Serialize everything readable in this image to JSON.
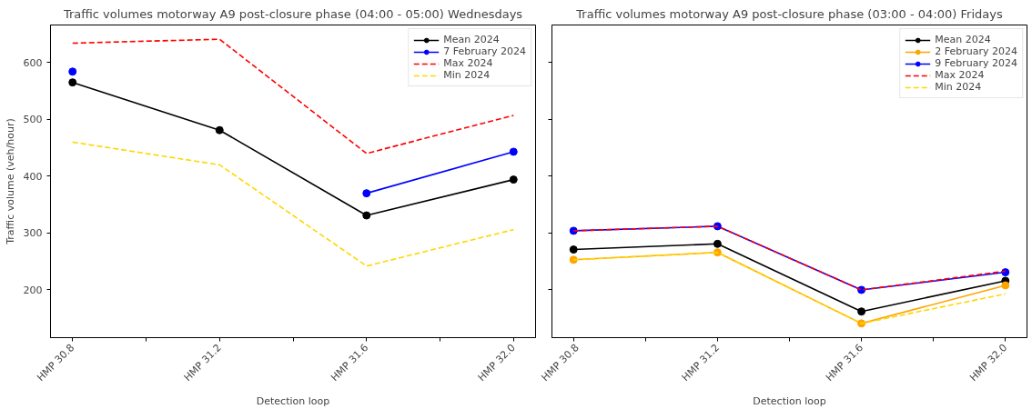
{
  "chart_data": [
    {
      "type": "line",
      "title": "Traffic volumes motorway A9 post-closure phase (04:00 - 05:00) Wednesdays",
      "xlabel": "Detection loop",
      "ylabel": "Traffic volume (veh/hour)",
      "categories": [
        "HMP 30.8",
        "HMP 31.2",
        "HMP 31.6",
        "HMP 32.0"
      ],
      "ylim": [
        116,
        666
      ],
      "yticks": [
        200,
        300,
        400,
        500,
        600
      ],
      "legend": "top right",
      "grid": false,
      "marker": "circle",
      "line_style": "solid",
      "series": [
        {
          "name": "Mean 2024",
          "color": "#000000",
          "values": [
            565,
            481,
            331,
            394
          ]
        },
        {
          "name": "7 February 2024",
          "color": "#0000ff",
          "values": [
            584,
            null,
            370,
            443
          ]
        },
        {
          "name": "Max 2024",
          "color": "#ff0000",
          "values": [
            634,
            641,
            440,
            507
          ],
          "marker": "none",
          "line_style": "dashed"
        },
        {
          "name": "Min 2024",
          "color": "#ffd700",
          "values": [
            460,
            420,
            242,
            306
          ],
          "marker": "none",
          "line_style": "dashed"
        }
      ]
    },
    {
      "type": "line",
      "title": "Traffic volumes motorway A9 post-closure phase (03:00 - 04:00) Fridays",
      "xlabel": "Detection loop",
      "categories": [
        "HMP 30.8",
        "HMP 31.2",
        "HMP 31.6",
        "HMP 32.0"
      ],
      "ylim": [
        116,
        666
      ],
      "yticks": [
        200,
        300,
        400,
        500,
        600
      ],
      "tick_labels": "x",
      "legend": "top right",
      "grid": false,
      "marker": "circle",
      "line_style": "solid",
      "series": [
        {
          "name": "Mean 2024",
          "color": "#000000",
          "values": [
            271,
            281,
            162,
            216
          ]
        },
        {
          "name": "2 February 2024",
          "color": "#ffa500",
          "values": [
            253,
            266,
            141,
            208
          ]
        },
        {
          "name": "9 February 2024",
          "color": "#0000ff",
          "values": [
            304,
            312,
            200,
            231
          ]
        },
        {
          "name": "Max 2024",
          "color": "#ff0000",
          "values": [
            304,
            312,
            200,
            233
          ],
          "marker": "none",
          "line_style": "dashed"
        },
        {
          "name": "Min 2024",
          "color": "#ffd700",
          "values": [
            253,
            266,
            141,
            193
          ],
          "marker": "none",
          "line_style": "dashed"
        }
      ]
    }
  ]
}
